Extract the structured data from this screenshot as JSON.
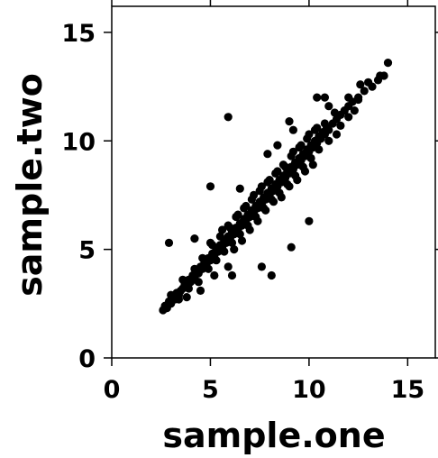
{
  "chart_data": {
    "type": "scatter",
    "title": "",
    "xlabel": "sample.one",
    "ylabel": "sample.two",
    "xlim": [
      0,
      16.4
    ],
    "ylim": [
      0,
      16.2
    ],
    "xticks": [
      0,
      5,
      10,
      15
    ],
    "yticks": [
      0,
      5,
      10,
      15
    ],
    "xtick_labels": [
      "0",
      "5",
      "10",
      "15"
    ],
    "ytick_labels": [
      "0",
      "5",
      "10",
      "15"
    ],
    "grid": false,
    "legend": "none",
    "series": [
      {
        "color": "#000000",
        "points": [
          [
            2.6,
            2.2
          ],
          [
            2.7,
            2.4
          ],
          [
            2.8,
            2.3
          ],
          [
            2.9,
            2.6
          ],
          [
            3.0,
            2.5
          ],
          [
            3.1,
            2.8
          ],
          [
            3.2,
            2.7
          ],
          [
            3.3,
            3.0
          ],
          [
            3.4,
            2.9
          ],
          [
            3.5,
            3.1
          ],
          [
            3.6,
            3.2
          ],
          [
            3.7,
            3.4
          ],
          [
            3.8,
            3.3
          ],
          [
            3.9,
            3.6
          ],
          [
            4.0,
            3.5
          ],
          [
            4.1,
            3.8
          ],
          [
            4.2,
            3.7
          ],
          [
            4.3,
            4.0
          ],
          [
            4.4,
            3.9
          ],
          [
            4.5,
            4.2
          ],
          [
            4.6,
            4.1
          ],
          [
            4.7,
            4.4
          ],
          [
            4.8,
            4.3
          ],
          [
            4.9,
            4.6
          ],
          [
            5.0,
            4.5
          ],
          [
            5.1,
            4.8
          ],
          [
            5.2,
            4.7
          ],
          [
            5.3,
            5.0
          ],
          [
            5.4,
            4.9
          ],
          [
            5.5,
            5.2
          ],
          [
            5.6,
            5.1
          ],
          [
            5.7,
            5.4
          ],
          [
            5.8,
            5.3
          ],
          [
            5.9,
            5.6
          ],
          [
            6.0,
            5.5
          ],
          [
            6.1,
            5.8
          ],
          [
            6.2,
            5.7
          ],
          [
            6.3,
            6.0
          ],
          [
            6.4,
            5.9
          ],
          [
            6.5,
            6.2
          ],
          [
            6.6,
            6.1
          ],
          [
            6.7,
            6.4
          ],
          [
            6.8,
            6.3
          ],
          [
            6.9,
            6.6
          ],
          [
            7.0,
            6.5
          ],
          [
            7.1,
            6.8
          ],
          [
            7.2,
            6.7
          ],
          [
            7.3,
            7.0
          ],
          [
            7.4,
            6.9
          ],
          [
            7.5,
            7.2
          ],
          [
            7.6,
            7.1
          ],
          [
            7.7,
            7.4
          ],
          [
            7.8,
            7.3
          ],
          [
            7.9,
            7.6
          ],
          [
            8.0,
            7.5
          ],
          [
            8.1,
            7.8
          ],
          [
            8.2,
            7.7
          ],
          [
            8.3,
            8.0
          ],
          [
            8.4,
            7.9
          ],
          [
            8.5,
            8.2
          ],
          [
            8.6,
            8.1
          ],
          [
            8.7,
            8.4
          ],
          [
            8.8,
            8.3
          ],
          [
            8.9,
            8.6
          ],
          [
            9.0,
            8.5
          ],
          [
            9.1,
            8.8
          ],
          [
            9.2,
            8.7
          ],
          [
            9.3,
            9.0
          ],
          [
            9.4,
            8.9
          ],
          [
            9.5,
            9.2
          ],
          [
            9.6,
            9.1
          ],
          [
            9.7,
            9.4
          ],
          [
            9.8,
            9.3
          ],
          [
            9.9,
            9.6
          ],
          [
            10.0,
            9.5
          ],
          [
            10.1,
            9.8
          ],
          [
            10.2,
            9.7
          ],
          [
            10.3,
            10.0
          ],
          [
            10.4,
            9.9
          ],
          [
            10.5,
            10.2
          ],
          [
            10.6,
            10.1
          ],
          [
            10.7,
            10.4
          ],
          [
            10.8,
            10.3
          ],
          [
            10.9,
            10.6
          ],
          [
            11.0,
            10.5
          ],
          [
            11.2,
            10.8
          ],
          [
            11.4,
            11.0
          ],
          [
            11.6,
            11.2
          ],
          [
            11.8,
            11.4
          ],
          [
            12.0,
            11.6
          ],
          [
            12.2,
            11.8
          ],
          [
            12.5,
            12.0
          ],
          [
            12.8,
            12.3
          ],
          [
            13.2,
            12.5
          ],
          [
            13.5,
            12.8
          ],
          [
            13.8,
            13.0
          ],
          [
            3.0,
            2.9
          ],
          [
            3.4,
            2.7
          ],
          [
            3.6,
            3.6
          ],
          [
            3.9,
            3.2
          ],
          [
            4.2,
            4.1
          ],
          [
            4.4,
            3.5
          ],
          [
            4.6,
            4.6
          ],
          [
            4.9,
            4.1
          ],
          [
            5.1,
            5.2
          ],
          [
            5.3,
            4.5
          ],
          [
            5.5,
            5.6
          ],
          [
            5.7,
            4.9
          ],
          [
            5.9,
            6.1
          ],
          [
            6.1,
            5.3
          ],
          [
            6.3,
            6.5
          ],
          [
            6.5,
            5.7
          ],
          [
            6.7,
            6.9
          ],
          [
            6.9,
            6.1
          ],
          [
            7.1,
            7.3
          ],
          [
            7.3,
            6.5
          ],
          [
            7.5,
            7.7
          ],
          [
            7.7,
            6.9
          ],
          [
            7.9,
            8.1
          ],
          [
            8.1,
            7.3
          ],
          [
            8.3,
            8.5
          ],
          [
            8.5,
            7.6
          ],
          [
            8.7,
            8.9
          ],
          [
            8.9,
            8.0
          ],
          [
            9.1,
            9.3
          ],
          [
            9.3,
            8.4
          ],
          [
            9.5,
            9.7
          ],
          [
            9.7,
            8.8
          ],
          [
            9.9,
            10.1
          ],
          [
            10.1,
            9.2
          ],
          [
            10.3,
            10.5
          ],
          [
            10.5,
            9.6
          ],
          [
            10.8,
            10.8
          ],
          [
            11.0,
            10.0
          ],
          [
            11.3,
            11.3
          ],
          [
            11.6,
            10.7
          ],
          [
            12.0,
            12.0
          ],
          [
            12.3,
            11.4
          ],
          [
            5.0,
            5.3
          ],
          [
            5.6,
            5.9
          ],
          [
            6.0,
            6.0
          ],
          [
            6.4,
            6.6
          ],
          [
            6.8,
            7.0
          ],
          [
            7.2,
            7.5
          ],
          [
            7.6,
            7.9
          ],
          [
            8.0,
            8.2
          ],
          [
            8.4,
            8.6
          ],
          [
            8.8,
            8.8
          ],
          [
            9.2,
            9.5
          ],
          [
            9.6,
            9.8
          ],
          [
            10.0,
            10.3
          ],
          [
            10.4,
            10.6
          ],
          [
            6.2,
            5.0
          ],
          [
            6.6,
            5.4
          ],
          [
            7.0,
            5.9
          ],
          [
            7.4,
            6.3
          ],
          [
            7.8,
            6.8
          ],
          [
            8.2,
            7.2
          ],
          [
            8.6,
            7.4
          ],
          [
            9.0,
            7.9
          ],
          [
            9.4,
            8.2
          ],
          [
            9.8,
            8.6
          ],
          [
            10.2,
            8.9
          ],
          [
            2.9,
            5.3
          ],
          [
            4.2,
            5.5
          ],
          [
            5.9,
            11.1
          ],
          [
            5.0,
            7.9
          ],
          [
            6.5,
            7.8
          ],
          [
            7.9,
            9.4
          ],
          [
            9.2,
            10.5
          ],
          [
            10.4,
            12.0
          ],
          [
            11.0,
            11.6
          ],
          [
            12.6,
            12.6
          ],
          [
            13.0,
            12.7
          ],
          [
            14.0,
            13.6
          ],
          [
            13.6,
            13.0
          ],
          [
            10.8,
            12.0
          ],
          [
            5.9,
            4.2
          ],
          [
            6.1,
            3.8
          ],
          [
            7.6,
            4.2
          ],
          [
            8.1,
            3.8
          ],
          [
            9.1,
            5.1
          ],
          [
            10.0,
            6.3
          ],
          [
            3.8,
            2.8
          ],
          [
            4.5,
            3.1
          ],
          [
            5.2,
            3.8
          ],
          [
            11.4,
            10.3
          ],
          [
            12.0,
            11.1
          ],
          [
            12.5,
            11.9
          ],
          [
            9.0,
            10.9
          ],
          [
            8.4,
            9.8
          ]
        ]
      }
    ]
  }
}
